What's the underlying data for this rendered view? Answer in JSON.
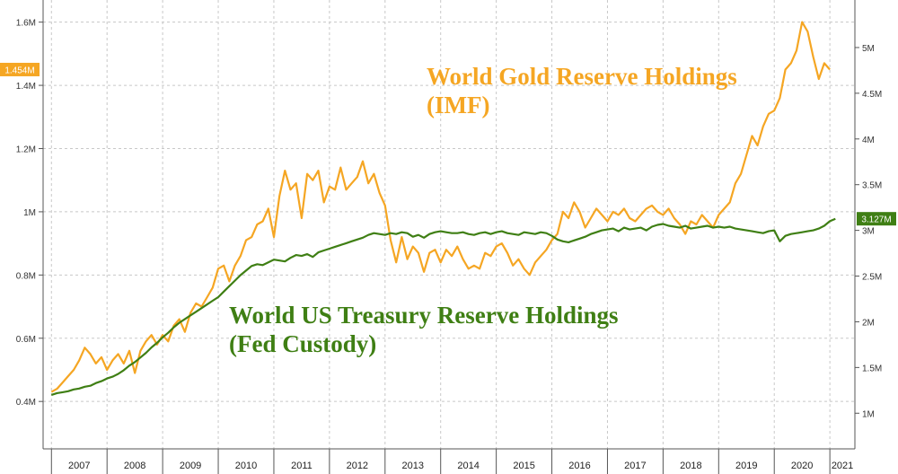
{
  "chart_data": {
    "type": "line",
    "title": "",
    "x_range": [
      2006.85,
      2021.45
    ],
    "x_ticks": [
      {
        "value": 2007.0,
        "label": "2007"
      },
      {
        "value": 2008.0,
        "label": "2008"
      },
      {
        "value": 2009.0,
        "label": "2009"
      },
      {
        "value": 2010.0,
        "label": "2010"
      },
      {
        "value": 2011.0,
        "label": "2011"
      },
      {
        "value": 2012.0,
        "label": "2012"
      },
      {
        "value": 2013.0,
        "label": "2013"
      },
      {
        "value": 2014.0,
        "label": "2014"
      },
      {
        "value": 2015.0,
        "label": "2015"
      },
      {
        "value": 2016.0,
        "label": "2016"
      },
      {
        "value": 2017.0,
        "label": "2017"
      },
      {
        "value": 2018.0,
        "label": "2018"
      },
      {
        "value": 2019.0,
        "label": "2019"
      },
      {
        "value": 2020.0,
        "label": "2020"
      },
      {
        "value": 2021.0,
        "label": "2021"
      }
    ],
    "left_axis": {
      "range": [
        0.25,
        1.67
      ],
      "ticks": [
        {
          "value": 0.4,
          "label": "0.4M"
        },
        {
          "value": 0.6,
          "label": "0.6M"
        },
        {
          "value": 0.8,
          "label": "0.8M"
        },
        {
          "value": 1.0,
          "label": "1M"
        },
        {
          "value": 1.2,
          "label": "1.2M"
        },
        {
          "value": 1.4,
          "label": "1.4M"
        },
        {
          "value": 1.6,
          "label": "1.6M"
        }
      ]
    },
    "right_axis": {
      "range": [
        0.61,
        5.52
      ],
      "ticks": [
        {
          "value": 1.0,
          "label": "1M"
        },
        {
          "value": 1.5,
          "label": "1.5M"
        },
        {
          "value": 2.0,
          "label": "2M"
        },
        {
          "value": 2.5,
          "label": "2.5M"
        },
        {
          "value": 3.0,
          "label": "3M"
        },
        {
          "value": 3.5,
          "label": "3.5M"
        },
        {
          "value": 4.0,
          "label": "4M"
        },
        {
          "value": 4.5,
          "label": "4.5M"
        },
        {
          "value": 5.0,
          "label": "5M"
        }
      ]
    },
    "series": [
      {
        "name": "World Gold Reserve Holdings (IMF)",
        "axis": "left",
        "color": "#f5a623",
        "last_value_label": "1.454M",
        "x": [
          2007.0,
          2007.1,
          2007.2,
          2007.3,
          2007.4,
          2007.5,
          2007.6,
          2007.7,
          2007.8,
          2007.9,
          2008.0,
          2008.1,
          2008.2,
          2008.3,
          2008.4,
          2008.5,
          2008.6,
          2008.7,
          2008.8,
          2008.9,
          2009.0,
          2009.1,
          2009.2,
          2009.3,
          2009.4,
          2009.5,
          2009.6,
          2009.7,
          2009.8,
          2009.9,
          2010.0,
          2010.1,
          2010.2,
          2010.3,
          2010.4,
          2010.5,
          2010.6,
          2010.7,
          2010.8,
          2010.9,
          2011.0,
          2011.1,
          2011.2,
          2011.3,
          2011.4,
          2011.5,
          2011.6,
          2011.7,
          2011.8,
          2011.9,
          2012.0,
          2012.1,
          2012.2,
          2012.3,
          2012.4,
          2012.5,
          2012.6,
          2012.7,
          2012.8,
          2012.9,
          2013.0,
          2013.1,
          2013.2,
          2013.3,
          2013.4,
          2013.5,
          2013.6,
          2013.7,
          2013.8,
          2013.9,
          2014.0,
          2014.1,
          2014.2,
          2014.3,
          2014.4,
          2014.5,
          2014.6,
          2014.7,
          2014.8,
          2014.9,
          2015.0,
          2015.1,
          2015.2,
          2015.3,
          2015.4,
          2015.5,
          2015.6,
          2015.7,
          2015.8,
          2015.9,
          2016.0,
          2016.1,
          2016.2,
          2016.3,
          2016.4,
          2016.5,
          2016.6,
          2016.7,
          2016.8,
          2016.9,
          2017.0,
          2017.1,
          2017.2,
          2017.3,
          2017.4,
          2017.5,
          2017.6,
          2017.7,
          2017.8,
          2017.9,
          2018.0,
          2018.1,
          2018.2,
          2018.3,
          2018.4,
          2018.5,
          2018.6,
          2018.7,
          2018.8,
          2018.9,
          2019.0,
          2019.1,
          2019.2,
          2019.3,
          2019.4,
          2019.5,
          2019.6,
          2019.7,
          2019.8,
          2019.9,
          2020.0,
          2020.1,
          2020.2,
          2020.3,
          2020.4,
          2020.5,
          2020.6,
          2020.7,
          2020.8,
          2020.9,
          2021.0
        ],
        "values": [
          0.43,
          0.44,
          0.46,
          0.48,
          0.5,
          0.53,
          0.57,
          0.55,
          0.52,
          0.54,
          0.5,
          0.53,
          0.55,
          0.52,
          0.56,
          0.49,
          0.56,
          0.59,
          0.61,
          0.58,
          0.61,
          0.59,
          0.64,
          0.66,
          0.62,
          0.68,
          0.71,
          0.7,
          0.73,
          0.76,
          0.82,
          0.83,
          0.78,
          0.83,
          0.86,
          0.91,
          0.92,
          0.96,
          0.97,
          1.01,
          0.92,
          1.05,
          1.13,
          1.07,
          1.09,
          0.98,
          1.12,
          1.1,
          1.13,
          1.03,
          1.08,
          1.07,
          1.14,
          1.07,
          1.09,
          1.11,
          1.16,
          1.09,
          1.12,
          1.06,
          1.02,
          0.91,
          0.84,
          0.92,
          0.85,
          0.89,
          0.87,
          0.81,
          0.87,
          0.88,
          0.84,
          0.88,
          0.86,
          0.89,
          0.85,
          0.82,
          0.83,
          0.82,
          0.87,
          0.86,
          0.89,
          0.9,
          0.87,
          0.83,
          0.85,
          0.82,
          0.8,
          0.84,
          0.86,
          0.88,
          0.91,
          0.93,
          1.0,
          0.98,
          1.03,
          1.0,
          0.95,
          0.98,
          1.01,
          0.99,
          0.97,
          1.0,
          0.99,
          1.01,
          0.98,
          0.97,
          0.99,
          1.01,
          1.02,
          1.0,
          0.99,
          1.01,
          0.98,
          0.96,
          0.93,
          0.97,
          0.96,
          0.99,
          0.97,
          0.95,
          0.99,
          1.01,
          1.03,
          1.09,
          1.12,
          1.18,
          1.24,
          1.21,
          1.27,
          1.31,
          1.32,
          1.36,
          1.45,
          1.47,
          1.51,
          1.6,
          1.57,
          1.49,
          1.42,
          1.47,
          1.45
        ]
      },
      {
        "name": "World US Treasury Reserve Holdings (Fed Custody)",
        "axis": "right",
        "color": "#3f7f14",
        "last_value_label": "3.127M",
        "x": [
          2007.0,
          2007.1,
          2007.2,
          2007.3,
          2007.4,
          2007.5,
          2007.6,
          2007.7,
          2007.8,
          2007.9,
          2008.0,
          2008.1,
          2008.2,
          2008.3,
          2008.4,
          2008.5,
          2008.6,
          2008.7,
          2008.8,
          2008.9,
          2009.0,
          2009.1,
          2009.2,
          2009.3,
          2009.4,
          2009.5,
          2009.6,
          2009.7,
          2009.8,
          2009.9,
          2010.0,
          2010.1,
          2010.2,
          2010.3,
          2010.4,
          2010.5,
          2010.6,
          2010.7,
          2010.8,
          2010.9,
          2011.0,
          2011.1,
          2011.2,
          2011.3,
          2011.4,
          2011.5,
          2011.6,
          2011.7,
          2011.8,
          2011.9,
          2012.0,
          2012.1,
          2012.2,
          2012.3,
          2012.4,
          2012.5,
          2012.6,
          2012.7,
          2012.8,
          2012.9,
          2013.0,
          2013.1,
          2013.2,
          2013.3,
          2013.4,
          2013.5,
          2013.6,
          2013.7,
          2013.8,
          2013.9,
          2014.0,
          2014.1,
          2014.2,
          2014.3,
          2014.4,
          2014.5,
          2014.6,
          2014.7,
          2014.8,
          2014.9,
          2015.0,
          2015.1,
          2015.2,
          2015.3,
          2015.4,
          2015.5,
          2015.6,
          2015.7,
          2015.8,
          2015.9,
          2016.0,
          2016.1,
          2016.2,
          2016.3,
          2016.4,
          2016.5,
          2016.6,
          2016.7,
          2016.8,
          2016.9,
          2017.0,
          2017.1,
          2017.2,
          2017.3,
          2017.4,
          2017.5,
          2017.6,
          2017.7,
          2017.8,
          2017.9,
          2018.0,
          2018.1,
          2018.2,
          2018.3,
          2018.4,
          2018.5,
          2018.6,
          2018.7,
          2018.8,
          2018.9,
          2019.0,
          2019.1,
          2019.2,
          2019.3,
          2019.4,
          2019.5,
          2019.6,
          2019.7,
          2019.8,
          2019.9,
          2020.0,
          2020.1,
          2020.2,
          2020.3,
          2020.4,
          2020.5,
          2020.6,
          2020.7,
          2020.8,
          2020.9,
          2021.0,
          2021.1
        ],
        "values": [
          1.2,
          1.22,
          1.23,
          1.24,
          1.26,
          1.27,
          1.29,
          1.3,
          1.33,
          1.35,
          1.38,
          1.4,
          1.43,
          1.47,
          1.52,
          1.56,
          1.61,
          1.66,
          1.72,
          1.77,
          1.83,
          1.88,
          1.94,
          1.99,
          2.03,
          2.07,
          2.11,
          2.15,
          2.19,
          2.23,
          2.27,
          2.33,
          2.39,
          2.45,
          2.51,
          2.56,
          2.61,
          2.63,
          2.62,
          2.65,
          2.68,
          2.67,
          2.66,
          2.7,
          2.73,
          2.72,
          2.74,
          2.71,
          2.76,
          2.78,
          2.8,
          2.82,
          2.84,
          2.86,
          2.88,
          2.9,
          2.92,
          2.95,
          2.97,
          2.96,
          2.95,
          2.97,
          2.96,
          2.98,
          2.97,
          2.93,
          2.95,
          2.92,
          2.96,
          2.98,
          2.99,
          2.98,
          2.97,
          2.97,
          2.98,
          2.96,
          2.95,
          2.97,
          2.98,
          2.96,
          2.98,
          2.99,
          2.97,
          2.96,
          2.95,
          2.98,
          2.97,
          2.96,
          2.98,
          2.97,
          2.94,
          2.9,
          2.88,
          2.87,
          2.89,
          2.91,
          2.93,
          2.96,
          2.98,
          3.0,
          3.01,
          3.02,
          2.99,
          3.03,
          3.01,
          3.02,
          3.03,
          3.0,
          3.04,
          3.06,
          3.07,
          3.05,
          3.04,
          3.03,
          3.05,
          3.02,
          3.03,
          3.04,
          3.05,
          3.03,
          3.04,
          3.03,
          3.04,
          3.02,
          3.01,
          3.0,
          2.99,
          2.98,
          2.97,
          2.99,
          3.0,
          2.88,
          2.94,
          2.96,
          2.97,
          2.98,
          2.99,
          3.0,
          3.02,
          3.05,
          3.1,
          3.127
        ]
      }
    ],
    "annotations": [
      {
        "series": 0,
        "lines": [
          "World Gold Reserve Holdings",
          "(IMF)"
        ]
      },
      {
        "series": 1,
        "lines": [
          "World US Treasury Reserve Holdings",
          "(Fed Custody)"
        ]
      }
    ],
    "grid": true
  }
}
